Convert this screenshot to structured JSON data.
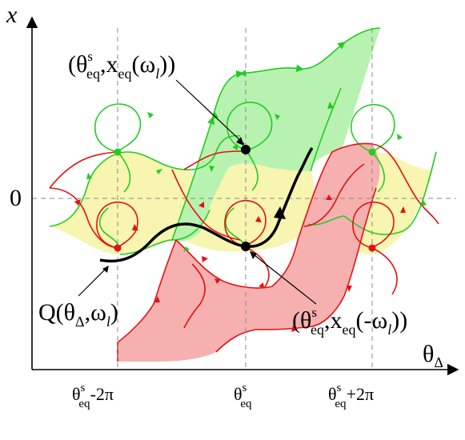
{
  "axes": {
    "y_label": "x",
    "x_label": "θ",
    "x_label_sub": "Δ",
    "zero_label": "0"
  },
  "ticks": [
    {
      "base": "θ",
      "sup": "s",
      "sub": "eq",
      "suffix": "-2π"
    },
    {
      "base": "θ",
      "sup": "s",
      "sub": "eq",
      "suffix": ""
    },
    {
      "base": "θ",
      "sup": "s",
      "sub": "eq",
      "suffix": "+2π"
    }
  ],
  "labels": {
    "upper_point": {
      "open": "(θ",
      "sup": "s",
      "sub": "eq",
      "mid": ",x",
      "sub2": "eq",
      "arg_open": "(ω",
      "arg_sub": "l",
      "close": "))"
    },
    "lower_point": {
      "open": "(θ",
      "sup": "s",
      "sub": "eq",
      "mid": ",x",
      "sub2": "eq",
      "arg_open": "(-ω",
      "arg_sub": "l",
      "close": "))"
    },
    "trajectory": {
      "open": "Q(θ",
      "sub": "Δ",
      "mid": ",ω",
      "sub2": "l",
      "close": ")"
    }
  },
  "colors": {
    "green_stroke": "#22cc22",
    "green_fill": "#b8f2b0",
    "red_stroke": "#e51010",
    "red_fill": "#f7b0b0",
    "yellow_fill": "#f7f5b0",
    "axis": "#000000",
    "grid": "#888888"
  }
}
